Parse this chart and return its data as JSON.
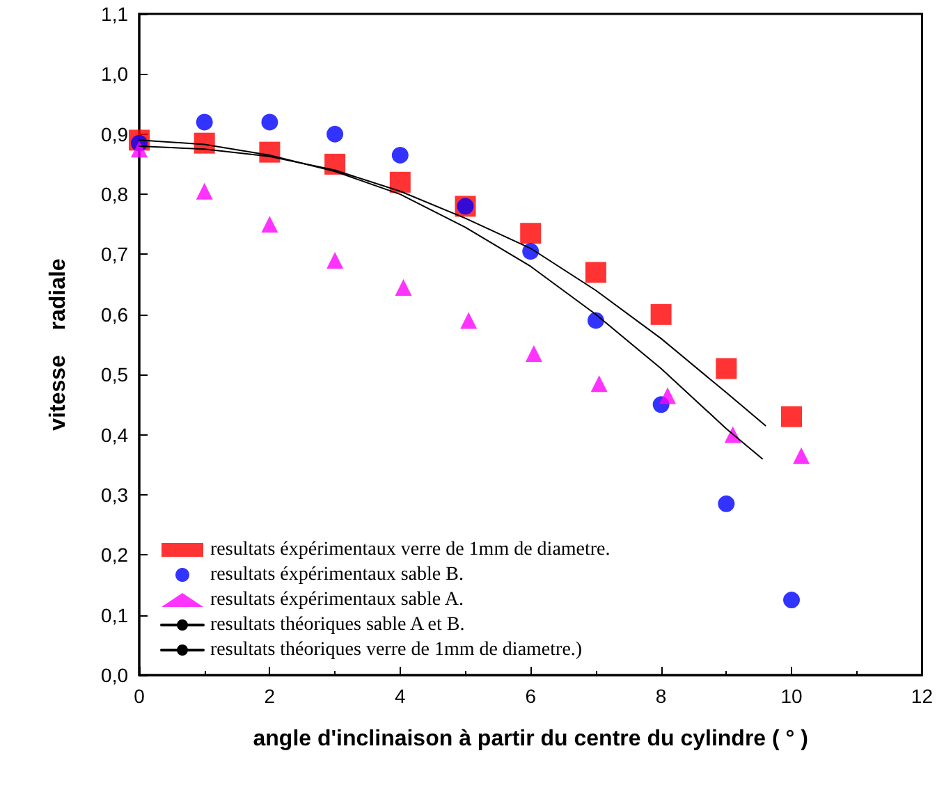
{
  "chart_data": {
    "type": "scatter",
    "xlabel": "angle d'inclinaison à partir du centre du cylindre ( ° )",
    "ylabel": "vitesse    radiale",
    "xlim": [
      0,
      12
    ],
    "xticks": [
      0,
      2,
      4,
      6,
      8,
      10,
      12
    ],
    "ylim": [
      0,
      1.1
    ],
    "yticks": [
      {
        "value": 0,
        "label": "0,0"
      },
      {
        "value": 0.1,
        "label": "0,1"
      },
      {
        "value": 0.2,
        "label": "0,2"
      },
      {
        "value": 0.3,
        "label": "0,3"
      },
      {
        "value": 0.4,
        "label": "0,4"
      },
      {
        "value": 0.5,
        "label": "0,5"
      },
      {
        "value": 0.6,
        "label": "0,6"
      },
      {
        "value": 0.7,
        "label": "0,7"
      },
      {
        "value": 0.8,
        "label": "0,8"
      },
      {
        "value": 0.9,
        "label": "0,9"
      },
      {
        "value": 1.0,
        "label": "1,0"
      },
      {
        "value": 1.1,
        "label": "1,1"
      }
    ],
    "grid": false,
    "legend": "bottom left",
    "series": [
      {
        "name": "resultats éxpérimentaux verre de 1mm de diametre.",
        "type": "scatter",
        "marker": "square",
        "color": "#ff0000",
        "x": [
          0,
          1,
          2,
          3,
          4,
          5,
          6,
          7,
          8,
          9,
          10
        ],
        "values": [
          0.89,
          0.885,
          0.87,
          0.85,
          0.82,
          0.78,
          0.735,
          0.67,
          0.6,
          0.51,
          0.43
        ]
      },
      {
        "name": "resultats éxpérimentaux sable B.",
        "type": "scatter",
        "marker": "circle",
        "color": "#0000ff",
        "x": [
          0,
          1,
          2,
          3,
          4,
          5,
          6,
          7,
          8,
          9,
          10
        ],
        "values": [
          0.885,
          0.92,
          0.92,
          0.9,
          0.865,
          0.78,
          0.705,
          0.59,
          0.45,
          0.285,
          0.125
        ]
      },
      {
        "name": "resultats éxpérimentaux sable A.",
        "type": "scatter",
        "marker": "triangle",
        "color": "#ff00ff",
        "x": [
          0,
          1,
          2,
          3,
          4.05,
          5.05,
          6.05,
          7.05,
          8.1,
          9.1,
          10.15
        ],
        "values": [
          0.875,
          0.805,
          0.75,
          0.69,
          0.645,
          0.59,
          0.535,
          0.485,
          0.465,
          0.4,
          0.365
        ]
      },
      {
        "name": "resultats théoriques sable A et B.",
        "type": "line",
        "marker": "none",
        "line_style": "solid",
        "color": "#000000",
        "x": [
          0,
          1,
          2,
          3,
          4,
          5,
          6,
          7,
          8,
          9,
          9.55
        ],
        "values": [
          0.89,
          0.883,
          0.865,
          0.838,
          0.8,
          0.745,
          0.68,
          0.6,
          0.51,
          0.41,
          0.36
        ]
      },
      {
        "name": "resultats théoriques verre de 1mm de diametre.)",
        "type": "line",
        "marker": "none",
        "line_style": "solid",
        "color": "#000000",
        "x": [
          0,
          1,
          2,
          3,
          4,
          5,
          6,
          7,
          8,
          9,
          9.6
        ],
        "values": [
          0.88,
          0.875,
          0.863,
          0.84,
          0.805,
          0.76,
          0.71,
          0.64,
          0.56,
          0.47,
          0.415
        ]
      }
    ]
  }
}
